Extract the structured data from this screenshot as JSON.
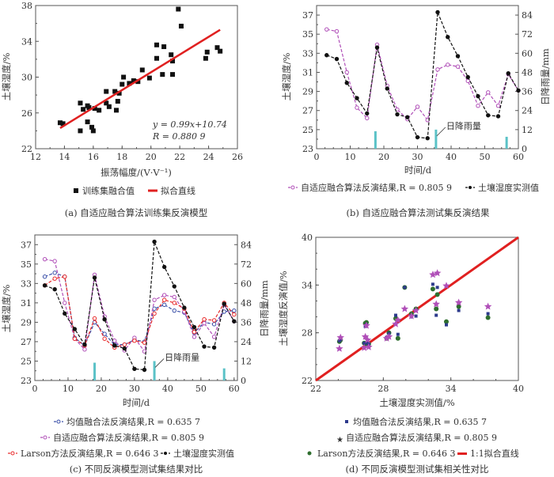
{
  "chart_data": [
    {
      "id": "a",
      "type": "scatter",
      "caption": "(a) 自适应融合算法训练集反演模型",
      "xlabel": "振荡幅度/(V·V⁻¹)",
      "ylabel": "土壤湿度/%",
      "xlim": [
        12,
        26
      ],
      "ylim": [
        22,
        38
      ],
      "xticks": [
        12,
        14,
        16,
        18,
        20,
        22,
        24,
        26
      ],
      "yticks": [
        22,
        26,
        30,
        34,
        38
      ],
      "grid": false,
      "series": [
        {
          "name": "训练集融合值",
          "marker": "square",
          "color": "#111111",
          "points": [
            [
              13.7,
              24.9
            ],
            [
              13.9,
              24.8
            ],
            [
              15.1,
              27.1
            ],
            [
              15.1,
              24.0
            ],
            [
              15.3,
              26.4
            ],
            [
              15.6,
              26.8
            ],
            [
              15.6,
              25.0
            ],
            [
              15.7,
              26.6
            ],
            [
              15.9,
              24.4
            ],
            [
              16.0,
              24.0
            ],
            [
              16.1,
              26.5
            ],
            [
              16.4,
              26.3
            ],
            [
              16.9,
              27.1
            ],
            [
              16.9,
              28.4
            ],
            [
              17.1,
              26.7
            ],
            [
              17.5,
              28.4
            ],
            [
              17.6,
              26.3
            ],
            [
              17.7,
              27.3
            ],
            [
              17.8,
              28.2
            ],
            [
              18.0,
              29.2
            ],
            [
              18.1,
              30.0
            ],
            [
              18.5,
              29.3
            ],
            [
              18.8,
              29.6
            ],
            [
              19.1,
              29.5
            ],
            [
              19.4,
              30.8
            ],
            [
              19.9,
              29.9
            ],
            [
              20.4,
              33.6
            ],
            [
              20.4,
              32.1
            ],
            [
              20.8,
              30.3
            ],
            [
              20.9,
              33.4
            ],
            [
              21.4,
              32.5
            ],
            [
              21.5,
              31.8
            ],
            [
              21.5,
              30.3
            ],
            [
              21.9,
              37.6
            ],
            [
              22.1,
              35.7
            ],
            [
              23.8,
              32.1
            ],
            [
              23.9,
              32.8
            ],
            [
              24.6,
              33.3
            ],
            [
              24.8,
              32.9
            ]
          ]
        },
        {
          "name": "拟合直线",
          "type": "line",
          "color": "#e02020",
          "slope": 0.99,
          "intercept": 10.74,
          "x_range": [
            13.7,
            24.8
          ]
        }
      ],
      "annotations": [
        "y = 0.99x+10.74",
        "R = 0.880 9"
      ],
      "legend": [
        "训练集融合值",
        "拟合直线"
      ],
      "legend_position": "bottom"
    },
    {
      "id": "b",
      "type": "line",
      "caption": "(b) 自适应融合算法测试集反演结果",
      "xlabel": "时间/d",
      "ylabel": "土壤湿度/%",
      "y2label": "日降雨量/mm",
      "xlim": [
        0,
        60
      ],
      "ylim": [
        23,
        38
      ],
      "y2lim": [
        0,
        90
      ],
      "xticks": [
        0,
        10,
        20,
        30,
        40,
        50,
        60
      ],
      "yticks": [
        23,
        25,
        27,
        29,
        31,
        33,
        35,
        37
      ],
      "y2ticks": [
        0,
        12,
        24,
        36,
        48,
        60,
        72,
        84
      ],
      "x": [
        3,
        6,
        9,
        12,
        15,
        18,
        21,
        24,
        27,
        30,
        33,
        36,
        39,
        42,
        45,
        48,
        51,
        54,
        57,
        60
      ],
      "series": [
        {
          "name": "自适应融合算法反演结果,R = 0.805 9",
          "color": "#b04fb8",
          "values": [
            35.5,
            35.3,
            31.0,
            27.3,
            26.2,
            33.9,
            29.6,
            27.1,
            26.1,
            27.4,
            26.0,
            31.3,
            31.8,
            31.6,
            30.1,
            27.5,
            28.9,
            27.5,
            30.8,
            29.1
          ]
        },
        {
          "name": "土壤湿度实测值",
          "color": "#111111",
          "values": [
            32.8,
            32.4,
            29.9,
            28.3,
            26.7,
            33.6,
            29.3,
            26.6,
            26.3,
            24.2,
            24.1,
            37.3,
            34.7,
            32.7,
            30.5,
            28.5,
            26.5,
            26.4,
            30.9,
            29.1
          ]
        }
      ],
      "rainfall": {
        "name": "日降雨量",
        "color": "#5bc2c7",
        "days": [
          17.5,
          35.5,
          56.5
        ],
        "mm": [
          11,
          12,
          7.5
        ]
      },
      "annotations": [
        "日降雨量"
      ],
      "legend": [
        "自适应融合算法反演结果,R = 0.805 9",
        "土壤湿度实测值"
      ],
      "legend_position": "bottom"
    },
    {
      "id": "c",
      "type": "line",
      "caption": "(c) 不同反演模型测试集结果对比",
      "xlabel": "时间/d",
      "ylabel": "土壤湿度/%",
      "y2label": "日降雨量/mm",
      "xlim": [
        0,
        61
      ],
      "ylim": [
        23,
        38
      ],
      "y2lim": [
        0,
        90
      ],
      "xticks": [
        0,
        10,
        20,
        30,
        40,
        50,
        60
      ],
      "yticks": [
        23,
        25,
        27,
        29,
        31,
        33,
        35,
        37
      ],
      "y2ticks": [
        0,
        12,
        24,
        36,
        48,
        60,
        72,
        84
      ],
      "x": [
        3,
        6,
        9,
        12,
        15,
        18,
        21,
        24,
        27,
        30,
        33,
        36,
        39,
        42,
        45,
        48,
        51,
        54,
        57,
        60
      ],
      "series": [
        {
          "name": "均值融合法反演结果,R = 0.635 7",
          "color": "#3a4fa8",
          "values": [
            33.7,
            34.1,
            33.7,
            27.4,
            26.6,
            29.0,
            27.8,
            26.7,
            26.7,
            27.2,
            27.0,
            30.4,
            30.8,
            30.2,
            30.0,
            27.9,
            29.0,
            28.8,
            30.1,
            30.2
          ]
        },
        {
          "name": "自适应融合算法反演结果,R = 0.805 9",
          "color": "#b04fb8",
          "values": [
            35.5,
            35.3,
            31.0,
            27.3,
            26.2,
            33.9,
            29.6,
            27.1,
            26.1,
            27.4,
            26.0,
            31.3,
            31.8,
            31.6,
            30.1,
            27.5,
            28.9,
            27.5,
            30.8,
            29.1
          ]
        },
        {
          "name": "Larson方法反演结果,R = 0.646 3",
          "color": "#e82a2a",
          "values": [
            32.8,
            33.5,
            33.7,
            27.3,
            26.6,
            29.4,
            27.3,
            26.4,
            26.7,
            27.1,
            26.9,
            29.9,
            31.3,
            31.0,
            30.4,
            28.0,
            29.3,
            29.2,
            31.0,
            29.8
          ]
        },
        {
          "name": "土壤湿度实测值",
          "color": "#111111",
          "values": [
            32.8,
            32.4,
            29.9,
            28.3,
            26.7,
            33.6,
            29.3,
            26.6,
            26.3,
            24.2,
            24.1,
            37.3,
            34.7,
            32.7,
            30.5,
            28.5,
            26.5,
            26.4,
            30.9,
            29.1
          ]
        }
      ],
      "rainfall": {
        "name": "日降雨量",
        "color": "#5bc2c7",
        "days": [
          18,
          36,
          57
        ],
        "mm": [
          11,
          12,
          7.5
        ]
      },
      "annotations": [
        "日降雨量"
      ],
      "legend": [
        "均值融合法反演结果,R = 0.635 7",
        "自适应融合算法反演结果,R = 0.805 9",
        "Larson方法反演结果,R = 0.646 3",
        "土壤湿度实测值"
      ],
      "legend_position": "bottom"
    },
    {
      "id": "d",
      "type": "scatter",
      "caption": "(d) 不同反演模型测试集相关性对比",
      "xlabel": "土壤湿度实测值/%",
      "ylabel": "土壤湿度反演值/%",
      "xlim": [
        22,
        40
      ],
      "ylim": [
        22,
        40
      ],
      "xticks": [
        22,
        28,
        34,
        40
      ],
      "yticks": [
        22,
        28,
        34,
        40
      ],
      "series": [
        {
          "name": "均值融合法反演结果,R = 0.635 7",
          "marker": "square",
          "color": "#2d3a8c",
          "points": [
            [
              32.8,
              33.7
            ],
            [
              32.4,
              34.1
            ],
            [
              29.9,
              33.7
            ],
            [
              28.3,
              27.4
            ],
            [
              26.7,
              26.6
            ],
            [
              33.6,
              29.0
            ],
            [
              29.3,
              27.8
            ],
            [
              26.6,
              26.7
            ],
            [
              26.3,
              26.7
            ],
            [
              24.2,
              27.2
            ],
            [
              24.1,
              27.0
            ],
            [
              37.3,
              30.4
            ],
            [
              34.7,
              30.8
            ],
            [
              32.7,
              30.2
            ],
            [
              30.5,
              30.0
            ],
            [
              28.5,
              27.9
            ],
            [
              26.5,
              29.0
            ],
            [
              26.4,
              28.8
            ],
            [
              30.9,
              30.1
            ],
            [
              29.1,
              30.2
            ]
          ]
        },
        {
          "name": "自适应融合算法反演结果,R = 0.805 9",
          "marker": "star",
          "color": "#b04fb8",
          "points": [
            [
              32.8,
              35.5
            ],
            [
              32.4,
              35.3
            ],
            [
              29.9,
              31.0
            ],
            [
              28.3,
              27.3
            ],
            [
              26.7,
              26.2
            ],
            [
              33.6,
              33.9
            ],
            [
              29.3,
              29.6
            ],
            [
              26.6,
              27.1
            ],
            [
              26.3,
              26.1
            ],
            [
              24.2,
              27.4
            ],
            [
              24.1,
              26.0
            ],
            [
              37.3,
              31.3
            ],
            [
              34.7,
              31.8
            ],
            [
              32.7,
              31.6
            ],
            [
              30.5,
              30.1
            ],
            [
              28.5,
              27.5
            ],
            [
              26.5,
              28.9
            ],
            [
              26.4,
              27.5
            ],
            [
              30.9,
              30.8
            ],
            [
              29.1,
              29.1
            ]
          ]
        },
        {
          "name": "Larson方法反演结果,R = 0.646 3",
          "marker": "circle",
          "color": "#2e6e2e",
          "points": [
            [
              32.8,
              32.8
            ],
            [
              32.4,
              33.5
            ],
            [
              29.9,
              33.7
            ],
            [
              28.3,
              27.3
            ],
            [
              26.7,
              26.6
            ],
            [
              33.6,
              29.4
            ],
            [
              29.3,
              27.3
            ],
            [
              26.6,
              26.4
            ],
            [
              26.3,
              26.7
            ],
            [
              24.2,
              27.1
            ],
            [
              24.1,
              26.9
            ],
            [
              37.3,
              29.9
            ],
            [
              34.7,
              31.3
            ],
            [
              32.7,
              31.0
            ],
            [
              30.5,
              30.4
            ],
            [
              28.5,
              28.0
            ],
            [
              26.5,
              29.3
            ],
            [
              26.4,
              29.2
            ],
            [
              30.9,
              31.0
            ],
            [
              29.1,
              29.8
            ]
          ]
        },
        {
          "name": "1:1拟合直线",
          "type": "line",
          "color": "#e02020",
          "from": [
            22,
            22
          ],
          "to": [
            40,
            40
          ]
        }
      ],
      "legend": [
        "均值融合法反演结果,R = 0.635 7",
        "自适应融合算法反演结果,R = 0.805 9",
        "Larson方法反演结果,R = 0.646 3",
        "1:1拟合直线"
      ],
      "legend_position": "bottom"
    }
  ],
  "texts": {
    "a": {
      "xlabel": "振荡幅度/(V·V⁻¹)",
      "ylabel": "土壤湿度/%",
      "eq": "y = 0.99x+10.74",
      "r": "R = 0.880 9",
      "legend1": "训练集融合值",
      "legend2": "拟合直线",
      "caption": "(a) 自适应融合算法训练集反演模型"
    },
    "b": {
      "xlabel": "时间/d",
      "ylabel": "土壤湿度/%",
      "y2label": "日降雨量/mm",
      "rain": "日降雨量",
      "legend1": "自适应融合算法反演结果,R = 0.805 9",
      "legend2": "土壤湿度实测值",
      "caption": "(b) 自适应融合算法测试集反演结果"
    },
    "c": {
      "xlabel": "时间/d",
      "ylabel": "土壤湿度/%",
      "y2label": "日降雨量/mm",
      "rain": "日降雨量",
      "legend1": "均值融合法反演结果,R = 0.635 7",
      "legend2": "自适应融合算法反演结果,R = 0.805 9",
      "legend3": "Larson方法反演结果,R = 0.646 3",
      "legend4": "土壤湿度实测值",
      "caption": "(c) 不同反演模型测试集结果对比"
    },
    "d": {
      "xlabel": "土壤湿度实测值/%",
      "ylabel": "土壤湿度反演值/%",
      "legend1": "均值融合法反演结果,R = 0.635 7",
      "legend2": "自适应融合算法反演结果,R = 0.805 9",
      "legend3": "Larson方法反演结果,R = 0.646 3",
      "legend4": "1:1拟合直线",
      "caption": "(d) 不同反演模型测试集相关性对比"
    }
  }
}
